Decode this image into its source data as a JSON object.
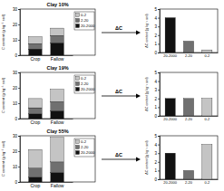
{
  "chart_data": [
    {
      "type": "bar",
      "stacked": true,
      "title": "Clay 10%",
      "ylabel": "C content (g kg⁻¹ soil)",
      "categories": [
        "Crop",
        "Fallow"
      ],
      "series": [
        {
          "name": "20-2000",
          "color": "#111111",
          "values": [
            4,
            8
          ]
        },
        {
          "name": "2-20",
          "color": "#707070",
          "values": [
            3.5,
            4.8
          ]
        },
        {
          "name": "0-2",
          "color": "#c4c4c4",
          "values": [
            4.5,
            4.8
          ]
        }
      ],
      "ylim": [
        0,
        30
      ],
      "yticks": [
        0,
        10,
        20,
        30
      ],
      "legend": "upper right"
    },
    {
      "type": "bar",
      "ylabel": "ΔC content (g kg⁻¹ soil)",
      "annotation": "ΔC",
      "categories": [
        "20-2000",
        "2-20",
        "0-2"
      ],
      "values": [
        4,
        1.3,
        0.3
      ],
      "colors": [
        "#111111",
        "#707070",
        "#c4c4c4"
      ],
      "ylim": [
        0,
        5
      ],
      "yticks": [
        0,
        1,
        2,
        3,
        4,
        5
      ]
    },
    {
      "type": "bar",
      "stacked": true,
      "title": "Clay 19%",
      "ylabel": "C content (g kg⁻¹ soil)",
      "categories": [
        "Crop",
        "Fallow"
      ],
      "series": [
        {
          "name": "20-2000",
          "color": "#111111",
          "values": [
            3,
            5
          ]
        },
        {
          "name": "2-20",
          "color": "#707070",
          "values": [
            4,
            6
          ]
        },
        {
          "name": "0-2",
          "color": "#c4c4c4",
          "values": [
            6,
            8
          ]
        }
      ],
      "ylim": [
        0,
        30
      ],
      "yticks": [
        0,
        10,
        20,
        30
      ],
      "legend": "upper right"
    },
    {
      "type": "bar",
      "ylabel": "ΔC content (g kg⁻¹ soil)",
      "annotation": "ΔC",
      "categories": [
        "20-2000",
        "2-20",
        "0-2"
      ],
      "values": [
        2,
        2,
        2
      ],
      "colors": [
        "#111111",
        "#707070",
        "#c4c4c4"
      ],
      "ylim": [
        0,
        5
      ],
      "yticks": [
        0,
        1,
        2,
        3,
        4,
        5
      ]
    },
    {
      "type": "bar",
      "stacked": true,
      "title": "Clay 55%",
      "ylabel": "C content (g kg⁻¹ soil)",
      "categories": [
        "Crop",
        "Fallow"
      ],
      "series": [
        {
          "name": "20-2000",
          "color": "#111111",
          "values": [
            3,
            6
          ]
        },
        {
          "name": "2-20",
          "color": "#707070",
          "values": [
            6,
            7
          ]
        },
        {
          "name": "0-2",
          "color": "#c4c4c4",
          "values": [
            12,
            16
          ]
        }
      ],
      "ylim": [
        0,
        30
      ],
      "yticks": [
        0,
        10,
        20,
        30
      ],
      "legend": "upper right"
    },
    {
      "type": "bar",
      "ylabel": "ΔC content (g kg⁻¹ soil)",
      "annotation": "ΔC",
      "categories": [
        "20-2000",
        "2-20",
        "0-2"
      ],
      "values": [
        3,
        1,
        4
      ],
      "colors": [
        "#111111",
        "#707070",
        "#c4c4c4"
      ],
      "ylim": [
        0,
        5
      ],
      "yticks": [
        0,
        1,
        2,
        3,
        4,
        5
      ]
    }
  ]
}
